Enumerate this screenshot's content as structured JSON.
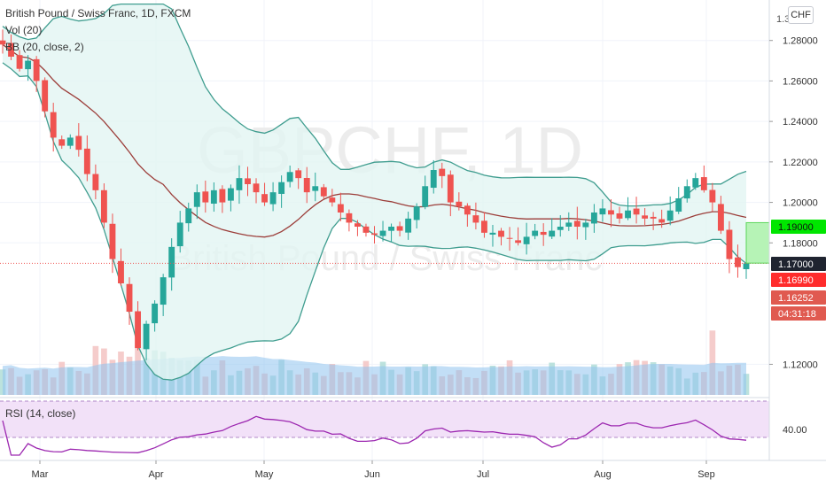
{
  "header": {
    "symbol_title": "British Pound / Swiss Franc, 1D, FXCM",
    "volume_label": "Vol (20)",
    "bb_label": "BB (20, close, 2)",
    "rsi_label": "RSI (14, close)",
    "currency_button": "CHF"
  },
  "watermark": {
    "big": "GBPCHF, 1D",
    "small": "British Pound / Swiss Franc"
  },
  "colors": {
    "up": "#26a69a",
    "down": "#ef5350",
    "bb_line": "#3f9d8f",
    "bb_fill": "#e2f5f2",
    "basis": "#9c3e3a",
    "volume_ma": "#8fc3ee",
    "rsi_line": "#9c27b0",
    "rsi_band": "#f2e1f8",
    "tag_green": "#00e600",
    "tag_red": "#ff2c2c"
  },
  "price_axis": {
    "ticks": [
      "1.28000",
      "1.26000",
      "1.24000",
      "1.22000",
      "1.20000",
      "1.18000",
      "1.12000"
    ],
    "partial_top": "1.3"
  },
  "price_tags": [
    {
      "label": "1.19000",
      "value": 1.19,
      "style": "green"
    },
    {
      "label": "1.17000",
      "value": 1.17,
      "style": "dark"
    },
    {
      "label": "1.16990",
      "value": 1.1699,
      "style": "red"
    },
    {
      "label": "1.16252",
      "value": 1.16252,
      "style": "salmon"
    },
    {
      "label": "04:31:18",
      "value": null,
      "style": "salmon"
    }
  ],
  "rsi_axis": {
    "ticks": [
      "40.00"
    ]
  },
  "time_axis": {
    "labels": [
      "Mar",
      "Apr",
      "May",
      "Jun",
      "Jul",
      "Aug",
      "Sep"
    ]
  },
  "chart_data": {
    "type": "candlestick",
    "title": "British Pound / Swiss Franc, 1D, FXCM",
    "price_range": [
      1.104,
      1.3
    ],
    "x_categories": [
      "Mar",
      "Apr",
      "May",
      "Jun",
      "Jul",
      "Aug",
      "Sep"
    ],
    "close_series": [
      1.278,
      1.272,
      1.266,
      1.27,
      1.26,
      1.245,
      1.232,
      1.228,
      1.232,
      1.226,
      1.214,
      1.206,
      1.19,
      1.172,
      1.16,
      1.146,
      1.128,
      1.14,
      1.15,
      1.163,
      1.178,
      1.19,
      1.197,
      1.205,
      1.2,
      1.206,
      1.2,
      1.207,
      1.212,
      1.209,
      1.205,
      1.2,
      1.205,
      1.21,
      1.215,
      1.212,
      1.205,
      1.208,
      1.203,
      1.2,
      1.195,
      1.19,
      1.188,
      1.185,
      1.184,
      1.186,
      1.188,
      1.186,
      1.192,
      1.198,
      1.208,
      1.216,
      1.213,
      1.2,
      1.198,
      1.194,
      1.19,
      1.185,
      1.185,
      1.183,
      1.182,
      1.18,
      1.183,
      1.186,
      1.184,
      1.186,
      1.188,
      1.19,
      1.188,
      1.19,
      1.195,
      1.197,
      1.194,
      1.192,
      1.196,
      1.194,
      1.192,
      1.192,
      1.19,
      1.196,
      1.202,
      1.208,
      1.212,
      1.206,
      1.2,
      1.186,
      1.172,
      1.168,
      1.1699
    ],
    "annotations": [
      "1.19000",
      "1.17000",
      "1.16990",
      "1.16252"
    ],
    "indicators": [
      {
        "name": "Vol (20)",
        "note": "volume bars with moving-average area"
      },
      {
        "name": "BB (20, close, 2)",
        "note": "bollinger bands with basis"
      },
      {
        "name": "RSI (14, close)",
        "note": "oscillator pane"
      }
    ],
    "rsi_tick": "40.00",
    "grid": true,
    "last_price": 1.1699
  }
}
